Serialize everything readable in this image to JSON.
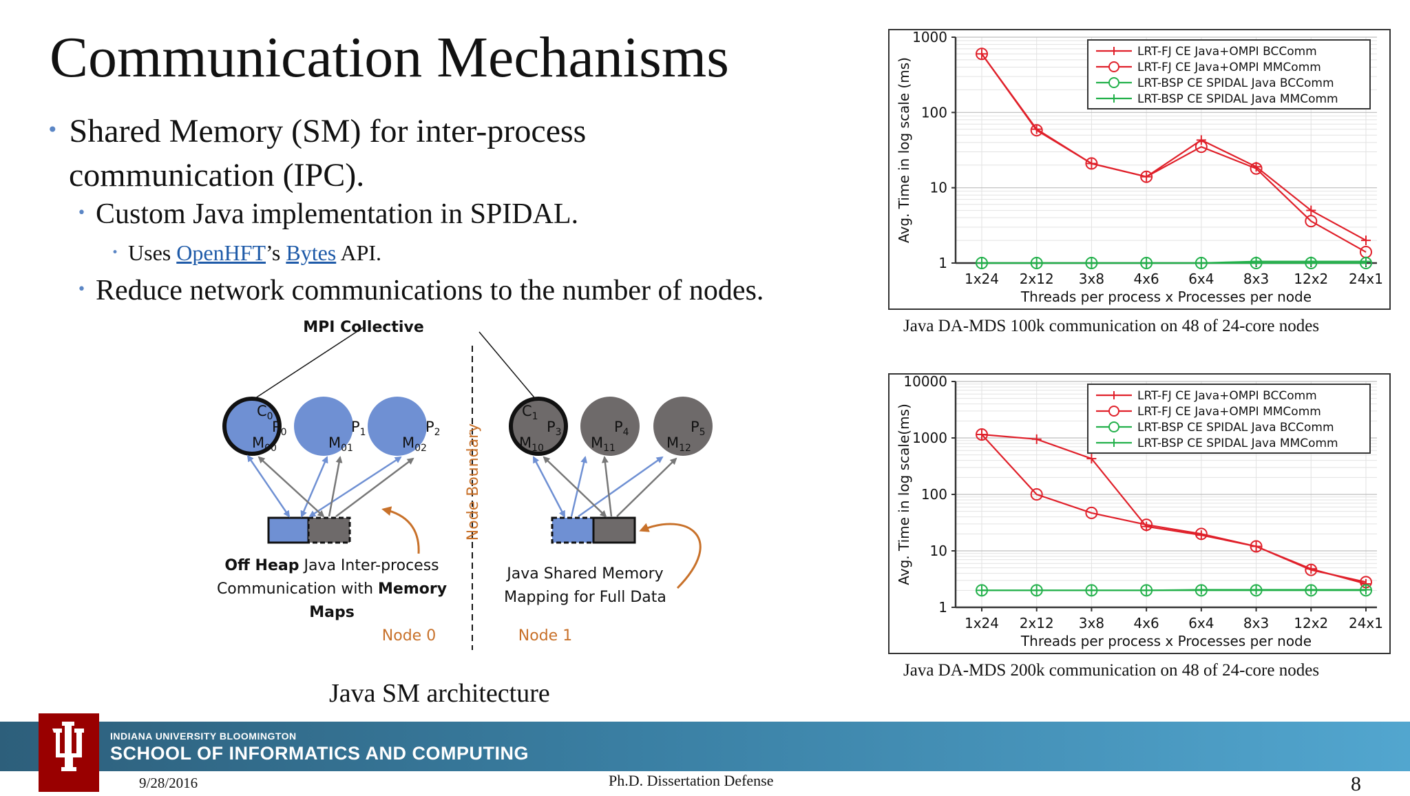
{
  "slide": {
    "title": "Communication Mechanisms",
    "bullets": {
      "b1_line1": "Shared Memory (SM) for inter-process",
      "b1_line2": "communication (IPC).",
      "b2": "Custom Java implementation in SPIDAL.",
      "b3_prefix": "Uses ",
      "b3_link1": "OpenHFT",
      "b3_mid": "’s ",
      "b3_link2": "Bytes",
      "b3_suffix": " API.",
      "b4": "Reduce network communications to the number of nodes."
    },
    "bullet_glyph": "•"
  },
  "diagram": {
    "mpi_label": "MPI Collective",
    "node_boundary": "Node Boundary",
    "node0_label": "Node 0",
    "node1_label": "Node 1",
    "left_caption_line1_bold": "Off Heap",
    "left_caption_line1_rest": " Java Inter-process",
    "left_caption_line2_rest": "Communication with ",
    "left_caption_line2_bold": "Memory",
    "left_caption_line3_bold": "Maps",
    "right_caption_line1": "Java Shared Memory",
    "right_caption_line2": "Mapping for Full Data",
    "caption": "Java SM architecture",
    "nodes": [
      {
        "c": "C",
        "c_sub": "0",
        "p": "P",
        "p_sub": "0",
        "m": "M",
        "m_sub": "00"
      },
      {
        "p": "P",
        "p_sub": "1",
        "m": "M",
        "m_sub": "01"
      },
      {
        "p": "P",
        "p_sub": "2",
        "m": "M",
        "m_sub": "02"
      },
      {
        "c": "C",
        "c_sub": "1",
        "p": "P",
        "p_sub": "3",
        "m": "M",
        "m_sub": "10"
      },
      {
        "p": "P",
        "p_sub": "4",
        "m": "M",
        "m_sub": "11"
      },
      {
        "p": "P",
        "p_sub": "5",
        "m": "M",
        "m_sub": "12"
      }
    ],
    "colors": {
      "blue": "#6f90d3",
      "gray": "#6e6a6a",
      "orange": "#c8712a"
    }
  },
  "chart_data": [
    {
      "type": "line",
      "title": "",
      "caption": "Java DA-MDS 100k communication on 48 of 24-core nodes",
      "xlabel": "Threads per process x Processes per node",
      "ylabel": "Avg. Time in log scale (ms)",
      "yscale": "log",
      "ylim": [
        1,
        1000
      ],
      "yticks": [
        "1",
        "10",
        "100",
        "1000"
      ],
      "categories": [
        "1x24",
        "2x12",
        "3x8",
        "4x6",
        "6x4",
        "8x3",
        "12x2",
        "24x1"
      ],
      "legend_position": "top-right",
      "grid": true,
      "series": [
        {
          "name": "LRT-FJ CE Java+OMPI BCComm",
          "color": "#e0202a",
          "marker": "plus",
          "values": [
            600,
            60,
            21,
            14,
            43,
            19,
            5,
            2
          ]
        },
        {
          "name": "LRT-FJ CE Java+OMPI MMComm",
          "color": "#e0202a",
          "marker": "circle",
          "values": [
            600,
            58,
            21,
            14,
            35,
            18,
            3.6,
            1.4
          ]
        },
        {
          "name": "LRT-BSP CE SPIDAL Java BCComm",
          "color": "#22b04a",
          "marker": "circle",
          "values": [
            1,
            1,
            1,
            1,
            1,
            1,
            1,
            1
          ]
        },
        {
          "name": "LRT-BSP CE SPIDAL Java MMComm",
          "color": "#22b04a",
          "marker": "plus",
          "values": [
            1,
            1,
            1,
            1,
            1,
            1.05,
            1.05,
            1.05
          ]
        }
      ]
    },
    {
      "type": "line",
      "title": "",
      "caption": "Java DA-MDS 200k communication on 48 of 24-core nodes",
      "xlabel": "Threads per process x Processes per node",
      "ylabel": "Avg. Time in log scale(ms)",
      "yscale": "log",
      "ylim": [
        1,
        10000
      ],
      "yticks": [
        "1",
        "10",
        "100",
        "1000",
        "10000"
      ],
      "categories": [
        "1x24",
        "2x12",
        "3x8",
        "4x6",
        "6x4",
        "8x3",
        "12x2",
        "24x1"
      ],
      "legend_position": "top-right",
      "grid": true,
      "series": [
        {
          "name": "LRT-FJ CE Java+OMPI BCComm",
          "color": "#e0202a",
          "marker": "plus",
          "values": [
            1150,
            950,
            430,
            27,
            19,
            12,
            4.8,
            2.6
          ]
        },
        {
          "name": "LRT-FJ CE Java+OMPI MMComm",
          "color": "#e0202a",
          "marker": "circle",
          "values": [
            1150,
            100,
            47,
            29,
            20,
            12,
            4.6,
            2.8
          ]
        },
        {
          "name": "LRT-BSP CE SPIDAL Java BCComm",
          "color": "#22b04a",
          "marker": "circle",
          "values": [
            2,
            2,
            2,
            2,
            2,
            2,
            2,
            2
          ]
        },
        {
          "name": "LRT-BSP CE SPIDAL Java MMComm",
          "color": "#22b04a",
          "marker": "plus",
          "values": [
            2,
            2,
            2,
            2,
            2.05,
            2.05,
            2.05,
            2.05
          ]
        }
      ]
    }
  ],
  "footer": {
    "university": "INDIANA UNIVERSITY BLOOMINGTON",
    "school": "SCHOOL OF INFORMATICS AND COMPUTING",
    "date": "9/28/2016",
    "center": "Ph.D. Dissertation Defense",
    "page_number": "8",
    "brand_red": "#990000",
    "band_color": "#3a7fa3"
  }
}
